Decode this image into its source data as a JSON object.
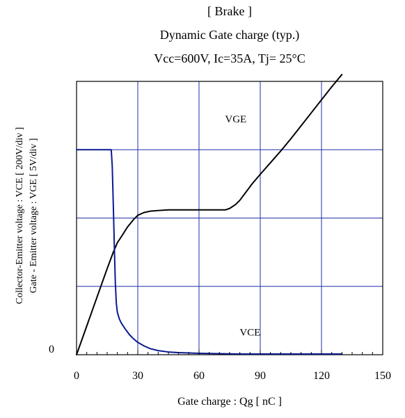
{
  "chart_data": {
    "type": "line",
    "title_lines": [
      "[ Brake ]",
      "Dynamic Gate charge  (typ.)",
      "Vcc=600V,  Ic=35A, Tj= 25°C"
    ],
    "xlabel": "Gate charge  :  Qg  [ nC ]",
    "ylabel_lines": [
      "Collector-Emitter voltage : VCE [ 200V/div ]",
      "Gate - Emitter voltage  :  VGE       [ 5V/div ]"
    ],
    "xlim": [
      0,
      150
    ],
    "ylim": [
      0,
      4
    ],
    "x_ticks": [
      0,
      30,
      60,
      90,
      120,
      150
    ],
    "x_tick_labels": [
      "0",
      "30",
      "60",
      "90",
      "120",
      "150"
    ],
    "y_tick_labels": [
      {
        "value": 0,
        "label": "0"
      }
    ],
    "grid": true,
    "colors": {
      "grid": "#1f2fa8",
      "vge": "#000000",
      "vce": "#0b1a8f",
      "frame": "#000000"
    },
    "series": [
      {
        "name": "VGE",
        "label_at": [
          78,
          3.4
        ],
        "x": [
          0,
          5,
          10,
          15,
          18,
          20,
          22,
          25,
          28,
          30,
          33,
          36,
          40,
          45,
          50,
          55,
          60,
          65,
          70,
          73,
          75,
          78,
          80,
          83,
          86,
          90,
          95,
          100,
          105,
          110,
          115,
          120,
          125,
          130
        ],
        "y": [
          0,
          0.42,
          0.84,
          1.26,
          1.5,
          1.64,
          1.73,
          1.87,
          1.98,
          2.04,
          2.08,
          2.1,
          2.11,
          2.12,
          2.12,
          2.12,
          2.12,
          2.12,
          2.12,
          2.12,
          2.14,
          2.2,
          2.26,
          2.38,
          2.5,
          2.64,
          2.81,
          2.98,
          3.16,
          3.35,
          3.54,
          3.73,
          3.92,
          4.1
        ]
      },
      {
        "name": "VCE",
        "label_at": [
          85,
          0.28
        ],
        "x": [
          0,
          10,
          17,
          17.5,
          18,
          18.5,
          19,
          19.5,
          20,
          21,
          22,
          24,
          26,
          28,
          30,
          33,
          36,
          40,
          45,
          50,
          60,
          70,
          80,
          90,
          100,
          110,
          120,
          125,
          130
        ],
        "y": [
          3.0,
          3.0,
          3.0,
          2.75,
          2.2,
          1.6,
          1.05,
          0.75,
          0.62,
          0.52,
          0.46,
          0.37,
          0.29,
          0.23,
          0.18,
          0.13,
          0.09,
          0.06,
          0.04,
          0.03,
          0.02,
          0.015,
          0.01,
          0.01,
          0.01,
          0.01,
          0.01,
          0.01,
          0.01
        ]
      }
    ]
  }
}
